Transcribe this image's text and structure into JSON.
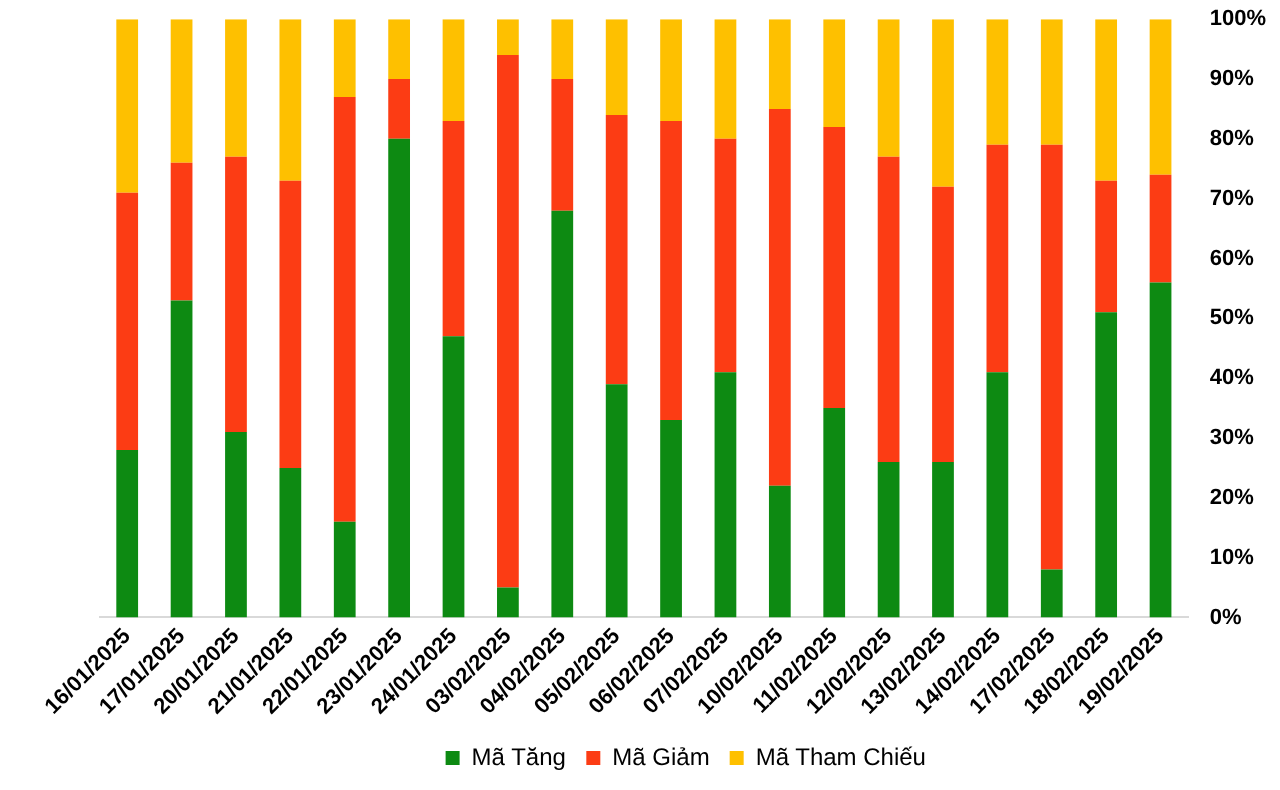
{
  "chart_data": {
    "type": "bar",
    "stacked": true,
    "categories": [
      "16/01/2025",
      "17/01/2025",
      "20/01/2025",
      "21/01/2025",
      "22/01/2025",
      "23/01/2025",
      "24/01/2025",
      "03/02/2025",
      "04/02/2025",
      "05/02/2025",
      "06/02/2025",
      "07/02/2025",
      "10/02/2025",
      "11/02/2025",
      "12/02/2025",
      "13/02/2025",
      "14/02/2025",
      "17/02/2025",
      "18/02/2025",
      "19/02/2025"
    ],
    "series": [
      {
        "name": "Mã Tăng",
        "color": "#0d8a12",
        "values": [
          28,
          53,
          31,
          25,
          16,
          80,
          47,
          5,
          68,
          39,
          33,
          41,
          22,
          35,
          26,
          26,
          41,
          8,
          51,
          56
        ]
      },
      {
        "name": "Mã Giảm",
        "color": "#fc3c14",
        "values": [
          43,
          23,
          46,
          48,
          71,
          10,
          36,
          89,
          22,
          45,
          50,
          39,
          63,
          47,
          51,
          46,
          38,
          71,
          22,
          18
        ]
      },
      {
        "name": "Mã Tham Chiếu",
        "color": "#fec000",
        "values": [
          29,
          24,
          23,
          27,
          13,
          10,
          17,
          6,
          10,
          16,
          17,
          20,
          15,
          18,
          23,
          28,
          21,
          21,
          27,
          26
        ]
      }
    ],
    "ylim": [
      0,
      100
    ],
    "yticks": [
      {
        "value": 0,
        "label": "0%"
      },
      {
        "value": 10,
        "label": "10%"
      },
      {
        "value": 20,
        "label": "20%"
      },
      {
        "value": 30,
        "label": "30%"
      },
      {
        "value": 40,
        "label": "40%"
      },
      {
        "value": 50,
        "label": "50%"
      },
      {
        "value": 60,
        "label": "60%"
      },
      {
        "value": 70,
        "label": "70%"
      },
      {
        "value": 80,
        "label": "80%"
      },
      {
        "value": 90,
        "label": "90%"
      },
      {
        "value": 100,
        "label": "100%"
      }
    ],
    "grid": false,
    "legend": "bottom"
  }
}
